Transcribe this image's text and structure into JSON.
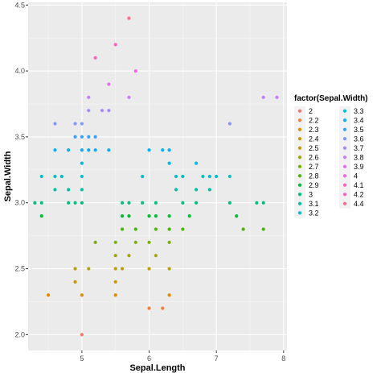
{
  "chart_data": {
    "type": "scatter",
    "xlabel": "Sepal.Length",
    "ylabel": "Sepal.Width",
    "xlim": [
      4.2,
      8.05
    ],
    "ylim": [
      1.88,
      4.52
    ],
    "x_ticks": [
      5,
      6,
      7,
      8
    ],
    "y_ticks": [
      2.0,
      2.5,
      3.0,
      3.5,
      4.0,
      4.5
    ],
    "grid": true,
    "legend": {
      "title": "factor(Sepal.Width)",
      "placement": "right",
      "entries": [
        {
          "label": "2",
          "color": "#F8766D"
        },
        {
          "label": "2.2",
          "color": "#ED813E"
        },
        {
          "label": "2.3",
          "color": "#DE8C00"
        },
        {
          "label": "2.4",
          "color": "#CD9600"
        },
        {
          "label": "2.5",
          "color": "#B79F00"
        },
        {
          "label": "2.6",
          "color": "#9DA700"
        },
        {
          "label": "2.7",
          "color": "#7CAE00"
        },
        {
          "label": "2.8",
          "color": "#49B500"
        },
        {
          "label": "2.9",
          "color": "#00BA38"
        },
        {
          "label": "3",
          "color": "#00BF7D"
        },
        {
          "label": "3.1",
          "color": "#00C1A3"
        },
        {
          "label": "3.2",
          "color": "#00BFC4"
        },
        {
          "label": "3.3",
          "color": "#00BAE0"
        },
        {
          "label": "3.4",
          "color": "#00B0F6"
        },
        {
          "label": "3.5",
          "color": "#35A2FF"
        },
        {
          "label": "3.6",
          "color": "#7F96FF"
        },
        {
          "label": "3.7",
          "color": "#A58AFF"
        },
        {
          "label": "3.8",
          "color": "#C77CFF"
        },
        {
          "label": "3.9",
          "color": "#E76BF3"
        },
        {
          "label": "4",
          "color": "#F565E3"
        },
        {
          "label": "4.1",
          "color": "#FF61C3"
        },
        {
          "label": "4.2",
          "color": "#FF62BC"
        },
        {
          "label": "4.4",
          "color": "#FF6C91"
        }
      ]
    },
    "points": [
      {
        "x": 5.0,
        "y": 2.0
      },
      {
        "x": 4.5,
        "y": 2.3
      },
      {
        "x": 5.0,
        "y": 2.3
      },
      {
        "x": 5.5,
        "y": 2.3
      },
      {
        "x": 6.3,
        "y": 2.3
      },
      {
        "x": 6.0,
        "y": 2.2
      },
      {
        "x": 6.2,
        "y": 2.2
      },
      {
        "x": 4.9,
        "y": 2.4
      },
      {
        "x": 5.5,
        "y": 2.4
      },
      {
        "x": 4.9,
        "y": 2.5
      },
      {
        "x": 5.1,
        "y": 2.5
      },
      {
        "x": 5.5,
        "y": 2.5
      },
      {
        "x": 5.6,
        "y": 2.5
      },
      {
        "x": 6.0,
        "y": 2.5
      },
      {
        "x": 6.3,
        "y": 2.5
      },
      {
        "x": 5.5,
        "y": 2.6
      },
      {
        "x": 5.7,
        "y": 2.6
      },
      {
        "x": 6.1,
        "y": 2.6
      },
      {
        "x": 5.2,
        "y": 2.7
      },
      {
        "x": 5.5,
        "y": 2.7
      },
      {
        "x": 5.8,
        "y": 2.7
      },
      {
        "x": 6.0,
        "y": 2.7
      },
      {
        "x": 6.3,
        "y": 2.7
      },
      {
        "x": 5.6,
        "y": 2.8
      },
      {
        "x": 5.8,
        "y": 2.8
      },
      {
        "x": 6.1,
        "y": 2.8
      },
      {
        "x": 6.3,
        "y": 2.8
      },
      {
        "x": 6.5,
        "y": 2.8
      },
      {
        "x": 7.4,
        "y": 2.8
      },
      {
        "x": 7.7,
        "y": 2.8
      },
      {
        "x": 4.4,
        "y": 2.9
      },
      {
        "x": 5.6,
        "y": 2.9
      },
      {
        "x": 5.7,
        "y": 2.9
      },
      {
        "x": 6.0,
        "y": 2.9
      },
      {
        "x": 6.1,
        "y": 2.9
      },
      {
        "x": 6.3,
        "y": 2.9
      },
      {
        "x": 6.6,
        "y": 2.9
      },
      {
        "x": 7.3,
        "y": 2.9
      },
      {
        "x": 4.3,
        "y": 3.0
      },
      {
        "x": 4.4,
        "y": 3.0
      },
      {
        "x": 4.8,
        "y": 3.0
      },
      {
        "x": 4.9,
        "y": 3.0
      },
      {
        "x": 5.0,
        "y": 3.0
      },
      {
        "x": 5.6,
        "y": 3.0
      },
      {
        "x": 5.7,
        "y": 3.0
      },
      {
        "x": 5.9,
        "y": 3.0
      },
      {
        "x": 6.1,
        "y": 3.0
      },
      {
        "x": 6.5,
        "y": 3.0
      },
      {
        "x": 6.7,
        "y": 3.0
      },
      {
        "x": 7.2,
        "y": 3.0
      },
      {
        "x": 7.6,
        "y": 3.0
      },
      {
        "x": 7.7,
        "y": 3.0
      },
      {
        "x": 4.6,
        "y": 3.1
      },
      {
        "x": 4.8,
        "y": 3.1
      },
      {
        "x": 5.0,
        "y": 3.1
      },
      {
        "x": 6.4,
        "y": 3.1
      },
      {
        "x": 6.7,
        "y": 3.1
      },
      {
        "x": 6.9,
        "y": 3.1
      },
      {
        "x": 4.4,
        "y": 3.2
      },
      {
        "x": 4.6,
        "y": 3.2
      },
      {
        "x": 4.7,
        "y": 3.2
      },
      {
        "x": 5.0,
        "y": 3.2
      },
      {
        "x": 5.9,
        "y": 3.2
      },
      {
        "x": 6.4,
        "y": 3.2
      },
      {
        "x": 6.5,
        "y": 3.2
      },
      {
        "x": 6.8,
        "y": 3.2
      },
      {
        "x": 6.9,
        "y": 3.2
      },
      {
        "x": 7.0,
        "y": 3.2
      },
      {
        "x": 7.2,
        "y": 3.2
      },
      {
        "x": 5.0,
        "y": 3.3
      },
      {
        "x": 6.3,
        "y": 3.3
      },
      {
        "x": 6.7,
        "y": 3.3
      },
      {
        "x": 4.6,
        "y": 3.4
      },
      {
        "x": 4.8,
        "y": 3.4
      },
      {
        "x": 5.0,
        "y": 3.4
      },
      {
        "x": 5.1,
        "y": 3.4
      },
      {
        "x": 5.2,
        "y": 3.4
      },
      {
        "x": 5.4,
        "y": 3.4
      },
      {
        "x": 6.0,
        "y": 3.4
      },
      {
        "x": 6.2,
        "y": 3.4
      },
      {
        "x": 6.3,
        "y": 3.4
      },
      {
        "x": 4.9,
        "y": 3.5
      },
      {
        "x": 5.0,
        "y": 3.5
      },
      {
        "x": 5.1,
        "y": 3.5
      },
      {
        "x": 5.2,
        "y": 3.5
      },
      {
        "x": 4.6,
        "y": 3.6
      },
      {
        "x": 4.9,
        "y": 3.6
      },
      {
        "x": 5.0,
        "y": 3.6
      },
      {
        "x": 7.2,
        "y": 3.6
      },
      {
        "x": 5.1,
        "y": 3.7
      },
      {
        "x": 5.3,
        "y": 3.7
      },
      {
        "x": 5.4,
        "y": 3.7
      },
      {
        "x": 5.1,
        "y": 3.8
      },
      {
        "x": 5.7,
        "y": 3.8
      },
      {
        "x": 7.7,
        "y": 3.8
      },
      {
        "x": 7.9,
        "y": 3.8
      },
      {
        "x": 5.4,
        "y": 3.9
      },
      {
        "x": 5.8,
        "y": 4.0
      },
      {
        "x": 5.2,
        "y": 4.1
      },
      {
        "x": 5.5,
        "y": 4.2
      },
      {
        "x": 5.7,
        "y": 4.4
      }
    ]
  }
}
